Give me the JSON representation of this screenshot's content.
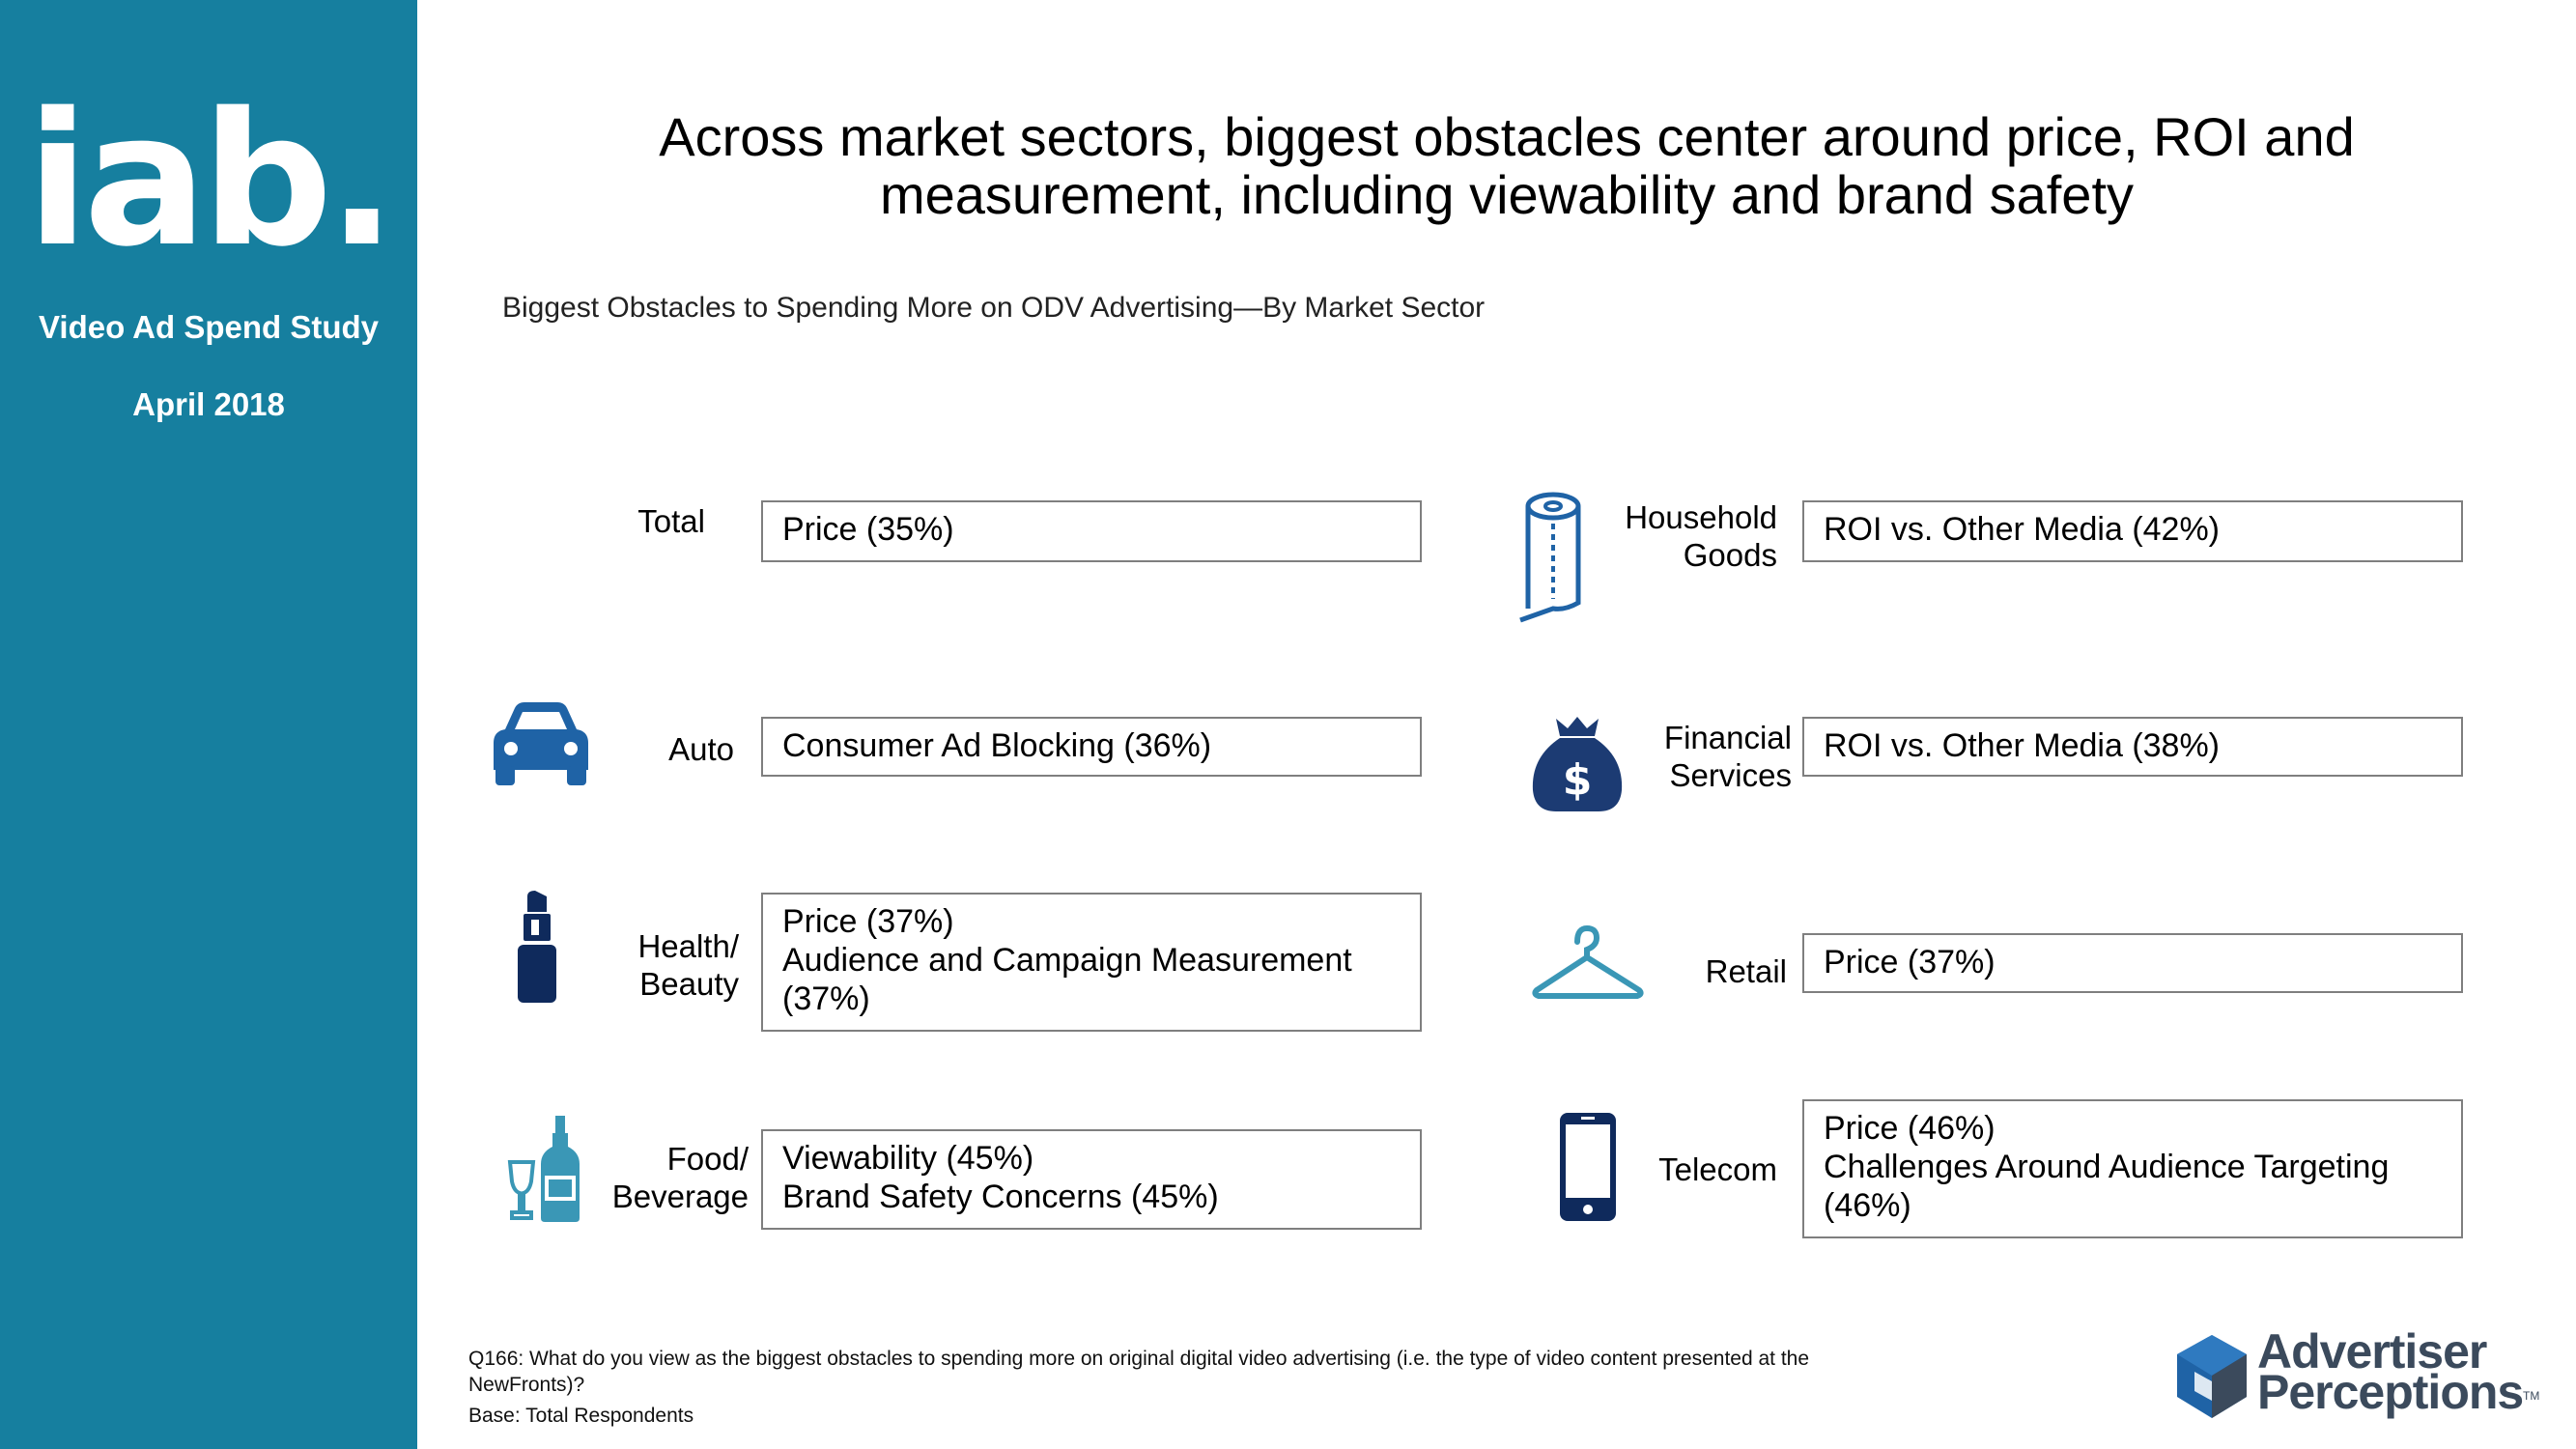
{
  "sidebar": {
    "logo": "iab.",
    "study": "Video Ad Spend Study",
    "date": "April 2018"
  },
  "title_line1": "Across market sectors, biggest obstacles center around price, ROI and",
  "title_line2": "measurement, including viewability and brand safety",
  "subtitle": "Biggest Obstacles to Spending More on ODV Advertising—By Market Sector",
  "sectors": {
    "total": {
      "label": "Total",
      "lines": [
        "Price (35%)"
      ]
    },
    "auto": {
      "label": "Auto",
      "icon": "car-icon",
      "lines": [
        "Consumer Ad Blocking (36%)"
      ]
    },
    "health": {
      "label_line1": "Health/",
      "label_line2": "Beauty",
      "icon": "lipstick-icon",
      "lines": [
        "Price (37%)",
        "Audience and Campaign Measurement",
        "(37%)"
      ]
    },
    "food": {
      "label_line1": "Food/",
      "label_line2": "Beverage",
      "icon": "wine-bottle-icon",
      "lines": [
        "Viewability (45%)",
        "Brand Safety Concerns (45%)"
      ]
    },
    "household": {
      "label_line1": "Household",
      "label_line2": "Goods",
      "icon": "paper-towel-icon",
      "lines": [
        "ROI vs. Other Media (42%)"
      ]
    },
    "financial": {
      "label_line1": "Financial",
      "label_line2": "Services",
      "icon": "money-bag-icon",
      "lines": [
        "ROI vs. Other Media (38%)"
      ]
    },
    "retail": {
      "label": "Retail",
      "icon": "hanger-icon",
      "lines": [
        "Price (37%)"
      ]
    },
    "telecom": {
      "label": "Telecom",
      "icon": "smartphone-icon",
      "lines": [
        "Price (46%)",
        "Challenges Around Audience Targeting",
        "(46%)"
      ]
    }
  },
  "footer": {
    "question_line1": "Q166:  What do you view as the biggest obstacles to spending more on original digital video advertising (i.e. the type of video content presented at the",
    "question_line2": "NewFronts)?",
    "base": "Base: Total Respondents"
  },
  "brand": {
    "line1": "Advertiser",
    "line2": "Perceptions",
    "tm": "TM"
  },
  "colors": {
    "sidebar": "#167f9f",
    "icon_blue": "#1f63a6",
    "icon_navy": "#0f2a5c",
    "icon_teal": "#3a97b6",
    "box_border": "#7f7f7f"
  }
}
